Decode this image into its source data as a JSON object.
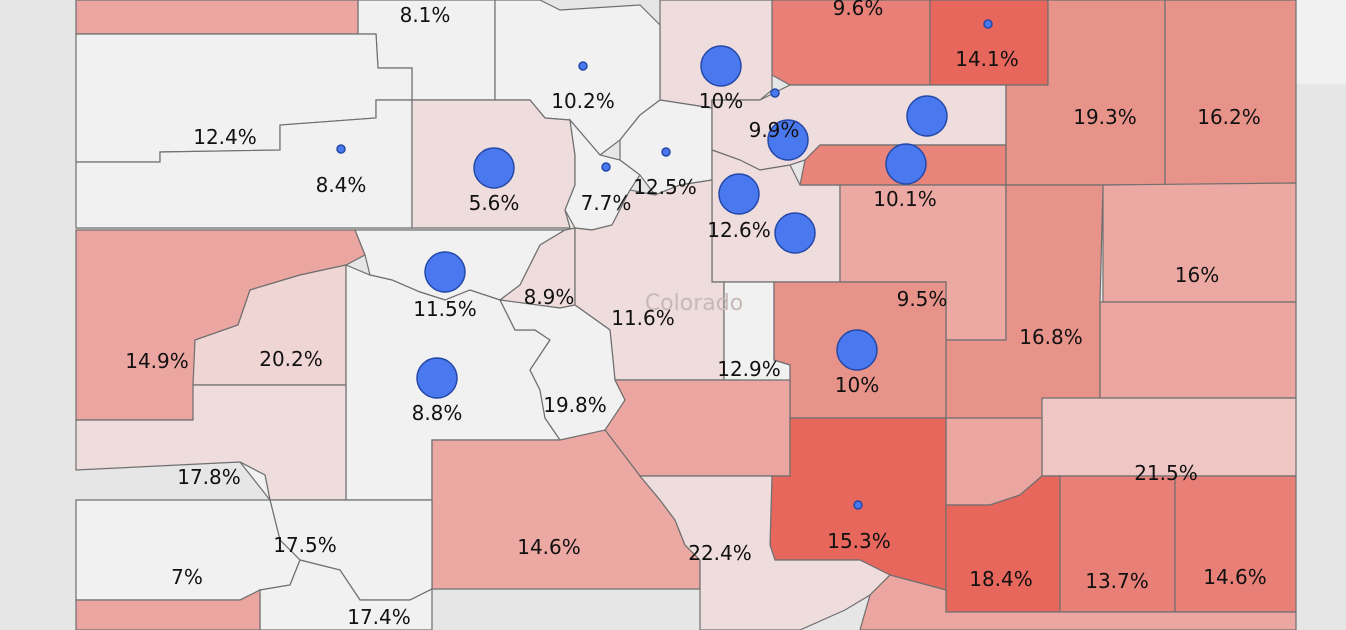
{
  "state_label": "Colorado",
  "counties": [
    {
      "label": "8.1%",
      "fill": "#f1f1f1"
    },
    {
      "label": "9.6%",
      "fill": "#e98078"
    },
    {
      "label": "14.1%",
      "fill": "#e8675d"
    },
    {
      "label": "10%",
      "fill": "#efdcdc"
    },
    {
      "label": "10.2%",
      "fill": "#f1f1f1"
    },
    {
      "label": "12.4%",
      "fill": "#f1f1f1"
    },
    {
      "label": "8.4%",
      "fill": "#f1f1f1"
    },
    {
      "label": "5.6%",
      "fill": "#efdcdc"
    },
    {
      "label": "7.7%",
      "fill": "#f1f1f1"
    },
    {
      "label": "12.5%",
      "fill": "#f1f1f1"
    },
    {
      "label": "9.9%",
      "fill": "#efdcdc"
    },
    {
      "label": "12.6%",
      "fill": "#efdcdc"
    },
    {
      "label": "10.1%",
      "fill": "#e9847a"
    },
    {
      "label": "19.3%",
      "fill": "#e8938a"
    },
    {
      "label": "16.2%",
      "fill": "#e8938a"
    },
    {
      "label": "16%",
      "fill": "#eca8a3"
    },
    {
      "label": "9.5%",
      "fill": "#eca8a3"
    },
    {
      "label": "16.8%",
      "fill": "#e8938a"
    },
    {
      "label": "11.5%",
      "fill": "#f1f1f1"
    },
    {
      "label": "8.9%",
      "fill": "#efdcdc"
    },
    {
      "label": "11.6%",
      "fill": "#efdcdc"
    },
    {
      "label": "14.9%",
      "fill": "#eba6a1"
    },
    {
      "label": "20.2%",
      "fill": "#efd6d5"
    },
    {
      "label": "12.9%",
      "fill": "#f1f1f1"
    },
    {
      "label": "10%",
      "fill": "#e8938a"
    },
    {
      "label": "8.8%",
      "fill": "#f1f1f1"
    },
    {
      "label": "19.8%",
      "fill": "#f1f1f1"
    },
    {
      "label": "17.8%",
      "fill": "#efdcdc"
    },
    {
      "label": "21.5%",
      "fill": "#efc6c3"
    },
    {
      "label": "15.3%",
      "fill": "#e8675d"
    },
    {
      "label": "14.6%",
      "fill": "#eca8a3"
    },
    {
      "label": "22.4%",
      "fill": "#efdcdc"
    },
    {
      "label": "17.5%",
      "fill": "#f1f1f1"
    },
    {
      "label": "7%",
      "fill": "#f1f1f1"
    },
    {
      "label": "17.4%",
      "fill": "#f1f1f1"
    },
    {
      "label": "18.4%",
      "fill": "#e8675d"
    },
    {
      "label": "13.7%",
      "fill": "#e98078"
    },
    {
      "label": "14.6%",
      "fill": "#e98078"
    }
  ]
}
